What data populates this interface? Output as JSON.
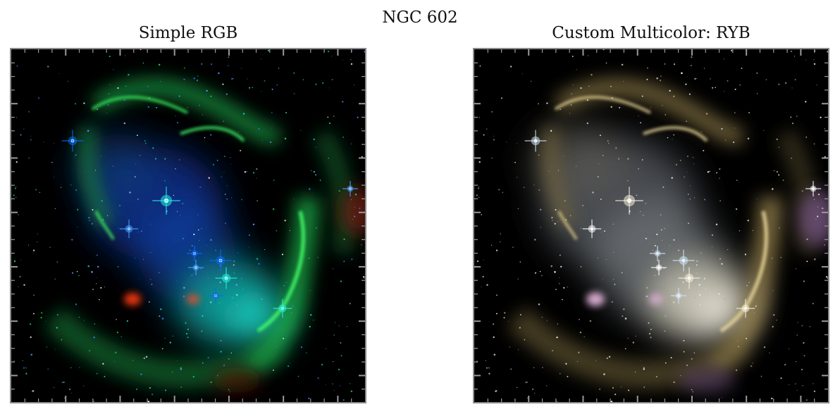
{
  "figure": {
    "suptitle": "NGC 602"
  },
  "panels": [
    {
      "title": "Simple RGB",
      "colormap": "rgb",
      "accent_colors": [
        "#0a6cff",
        "#21e04a",
        "#26f0e6",
        "#ff2a12"
      ]
    },
    {
      "title": "Custom Multicolor: RYB",
      "colormap": "ryb",
      "accent_colors": [
        "#f7f1df",
        "#c9b27a",
        "#b391c5",
        "#cfe6f6"
      ]
    }
  ]
}
